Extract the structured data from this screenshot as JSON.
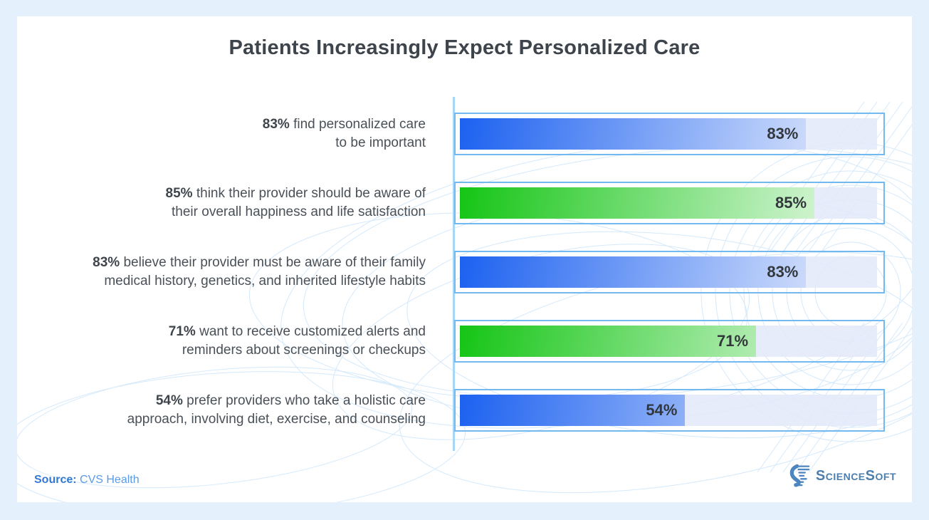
{
  "page": {
    "title": "Patients Increasingly Expect Personalized Care"
  },
  "source": {
    "prefix": "Source:",
    "name": "CVS Health"
  },
  "brand": {
    "word_science": "Science",
    "word_soft": "Soft",
    "full_name": "ScienceSoft"
  },
  "colors": {
    "canvas_bg": "#e4f1fd",
    "card_bg": "#ffffff",
    "bar_border": "#72b9ef",
    "axis_line": "#a5d5f7",
    "track": "#e3e9f9",
    "blue_gradient_start": "#1c61f0",
    "blue_gradient_end": "#eef2fd",
    "green_gradient_start": "#15c515",
    "green_gradient_end": "#eefbee",
    "title_text": "#3d444b",
    "label_text": "#4a5057",
    "value_text": "#32373c",
    "source_prefix": "#3279d6",
    "source_link": "#5b9be8",
    "logo_blue": "#4d7fae",
    "decoration_stroke": "#cbe4fa"
  },
  "chart_data": {
    "type": "bar",
    "orientation": "horizontal",
    "title": "Patients Increasingly Expect Personalized Care",
    "xlabel": "",
    "ylabel": "",
    "xlim": [
      0,
      100
    ],
    "grid": false,
    "legend": false,
    "categories": [
      "83% find personalized care to be important",
      "85% think their provider should be aware of their overall happiness and life satisfaction",
      "83% believe their provider must be aware of their family medical history, genetics, and inherited lifestyle habits",
      "71% want to receive customized alerts and reminders about screenings or checkups",
      "54% prefer providers who take a holistic care approach, involving diet, exercise, and counseling"
    ],
    "values": [
      83,
      85,
      83,
      71,
      54
    ],
    "value_labels": [
      "83%",
      "85%",
      "83%",
      "71%",
      "54%"
    ],
    "bar_colors": [
      "blue",
      "green",
      "blue",
      "green",
      "blue"
    ],
    "rows": [
      {
        "pct": "83%",
        "line1": "find personalized care",
        "line2": "to be important",
        "value": 83,
        "color": "blue",
        "value_label": "83%"
      },
      {
        "pct": "85%",
        "line1": "think their provider should be aware of",
        "line2": "their overall happiness and life satisfaction",
        "value": 85,
        "color": "green",
        "value_label": "85%"
      },
      {
        "pct": "83%",
        "line1": "believe their provider must be aware of their family",
        "line2": "medical history, genetics, and inherited lifestyle habits",
        "value": 83,
        "color": "blue",
        "value_label": "83%"
      },
      {
        "pct": "71%",
        "line1": "want to receive customized alerts and",
        "line2": "reminders about screenings or checkups",
        "value": 71,
        "color": "green",
        "value_label": "71%"
      },
      {
        "pct": "54%",
        "line1": "prefer providers who take a holistic care",
        "line2": "approach, involving diet, exercise, and counseling",
        "value": 54,
        "color": "blue",
        "value_label": "54%"
      }
    ]
  }
}
